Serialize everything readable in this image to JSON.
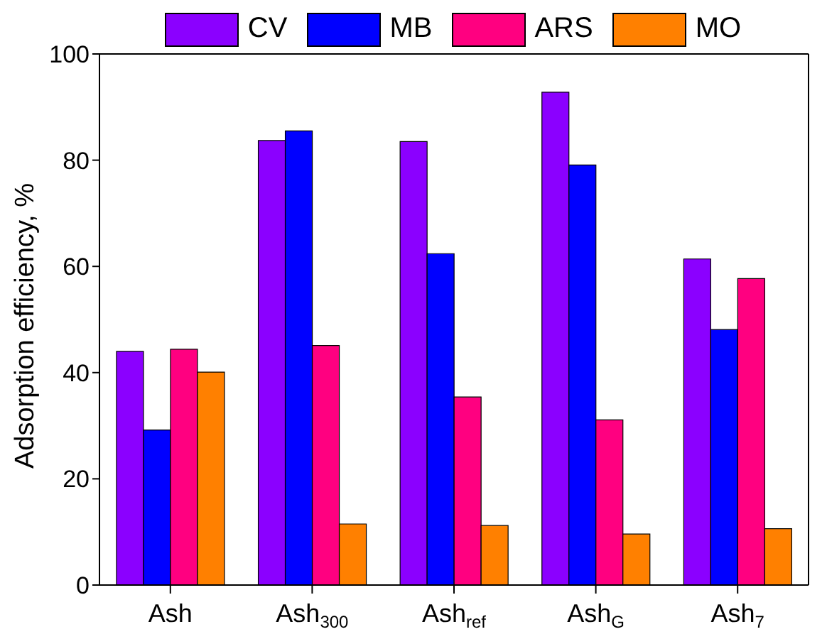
{
  "chart_data": {
    "type": "bar",
    "ylabel": "Adsorption efficiency, %",
    "categories": [
      "Ash",
      "Ash$_{300}$",
      "Ash$_{ref}$",
      "Ash$_{G}$",
      "Ash$_{7}$"
    ],
    "series": [
      {
        "name": "CV",
        "color": "#8b00ff",
        "values": [
          44,
          83.7,
          83.5,
          92.8,
          61.4
        ]
      },
      {
        "name": "MB",
        "color": "#0000ff",
        "values": [
          29.2,
          85.5,
          62.4,
          79.1,
          48.1
        ]
      },
      {
        "name": "ARS",
        "color": "#ff0080",
        "values": [
          44.4,
          45.1,
          35.4,
          31.1,
          57.7
        ]
      },
      {
        "name": "MO",
        "color": "#ff8000",
        "values": [
          40.1,
          11.5,
          11.2,
          9.6,
          10.6
        ]
      }
    ],
    "ylim": [
      0,
      100
    ],
    "yticks": [
      0,
      20,
      40,
      60,
      80,
      100
    ],
    "grid": false,
    "legend": "top"
  }
}
